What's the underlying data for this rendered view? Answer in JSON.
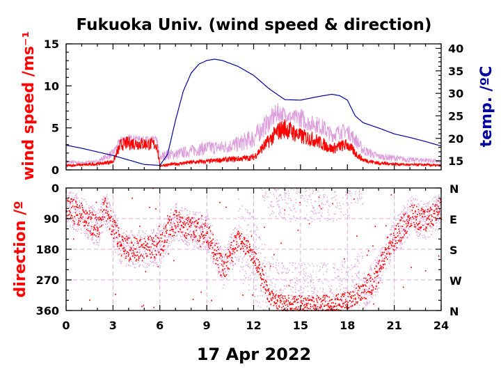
{
  "chart_data": [
    {
      "type": "line",
      "title": "Fukuoka Univ. (wind speed & direction)",
      "ylabel": "wind speed /ms⁻¹",
      "y2label": "temp. /ºC",
      "xlim": [
        0,
        24
      ],
      "ylim": [
        0,
        15
      ],
      "y2lim": [
        13,
        41
      ],
      "xticks": [
        0,
        3,
        6,
        9,
        12,
        15,
        18,
        21,
        24
      ],
      "yticks": [
        0,
        5,
        10,
        15
      ],
      "y2ticks": [
        15,
        20,
        25,
        30,
        35,
        40
      ],
      "colors": {
        "wind_mean": "#ff0000",
        "wind_gust": "#dda0dd",
        "temperature": "#0000a0"
      },
      "series": [
        {
          "role": "wind_mean",
          "x": [
            0,
            1,
            2,
            3,
            3.5,
            4,
            5,
            5.8,
            6,
            6.5,
            7,
            8,
            9,
            10,
            11,
            12,
            12.5,
            13,
            13.5,
            14,
            14.5,
            15,
            15.5,
            16,
            16.5,
            17,
            17.5,
            18,
            18.5,
            19,
            20,
            21,
            22,
            23,
            24
          ],
          "values": [
            0.5,
            0.6,
            0.7,
            1.0,
            3.0,
            3.2,
            3.1,
            3.0,
            0.5,
            0.6,
            0.7,
            0.9,
            1.0,
            1.2,
            1.3,
            1.5,
            2.5,
            3.5,
            4.5,
            5.0,
            4.5,
            4.0,
            3.8,
            3.5,
            3.0,
            2.5,
            2.8,
            3.0,
            2.0,
            1.2,
            0.8,
            0.7,
            0.6,
            0.6,
            0.5
          ]
        },
        {
          "role": "wind_gust",
          "x": [
            0,
            1,
            2,
            3,
            3.5,
            4,
            5,
            5.8,
            6,
            6.5,
            7,
            8,
            9,
            10,
            11,
            12,
            12.5,
            13,
            13.5,
            14,
            14.5,
            15,
            15.5,
            16,
            16.5,
            17,
            17.5,
            18,
            18.5,
            19,
            20,
            21,
            22,
            23,
            24
          ],
          "values": [
            1.2,
            1.0,
            1.2,
            2.5,
            4.0,
            4.2,
            4.0,
            4.0,
            2.0,
            2.5,
            2.5,
            3.0,
            3.5,
            3.5,
            4.0,
            5.0,
            6.0,
            7.0,
            8.0,
            7.5,
            7.0,
            7.5,
            6.5,
            6.5,
            6.0,
            5.0,
            5.5,
            5.5,
            4.5,
            3.0,
            2.0,
            1.8,
            1.5,
            1.5,
            1.2
          ]
        },
        {
          "role": "temperature",
          "x": [
            0,
            1,
            2,
            3,
            4,
            5,
            6,
            6.5,
            7,
            7.5,
            8,
            8.5,
            9,
            9.5,
            10,
            11,
            12,
            13,
            14,
            15,
            16,
            17,
            17.5,
            18,
            18.5,
            19,
            20,
            21,
            22,
            23,
            24
          ],
          "values": [
            18.5,
            17.8,
            17.0,
            16.2,
            15.2,
            14.2,
            14.0,
            16.5,
            24.0,
            30.5,
            34.5,
            36.5,
            37.3,
            37.6,
            37.3,
            36.0,
            34.0,
            31.0,
            28.6,
            28.5,
            29.2,
            29.8,
            29.5,
            28.5,
            25.0,
            23.5,
            22.3,
            21.0,
            20.2,
            19.3,
            18.3
          ]
        }
      ]
    },
    {
      "type": "scatter",
      "ylabel": "direction /º",
      "xlabel": "17 Apr 2022",
      "xlim": [
        0,
        24
      ],
      "ylim": [
        0,
        360
      ],
      "xticks": [
        0,
        3,
        6,
        9,
        12,
        15,
        18,
        21,
        24
      ],
      "yticks": [
        0,
        90,
        180,
        270,
        360
      ],
      "y2ticks": [
        "N",
        "E",
        "S",
        "W",
        "N"
      ],
      "grid": true,
      "colors": {
        "mean_direction": "#ff0000",
        "instant_direction": "#dda0dd"
      },
      "series": [
        {
          "role": "mean_direction",
          "x": [
            0,
            1,
            2,
            2.5,
            3,
            3.5,
            4,
            5,
            6,
            6.5,
            7,
            8,
            9,
            10,
            11,
            12,
            13,
            14,
            15,
            16,
            17,
            18,
            18.5,
            19,
            19.5,
            20,
            20.5,
            21,
            22,
            23,
            24
          ],
          "values": [
            60,
            80,
            120,
            60,
            120,
            170,
            180,
            180,
            170,
            120,
            100,
            120,
            130,
            240,
            150,
            200,
            320,
            340,
            340,
            340,
            340,
            330,
            320,
            300,
            280,
            250,
            180,
            150,
            80,
            100,
            60
          ]
        }
      ]
    }
  ]
}
